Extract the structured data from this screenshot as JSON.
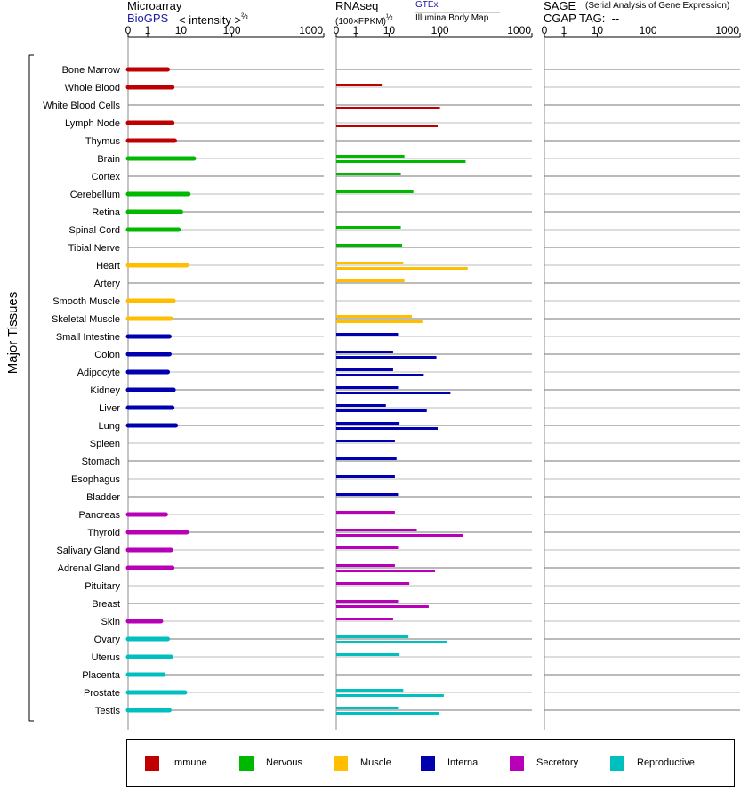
{
  "headers": {
    "microarray": "Microarray",
    "biogps": "BioGPS",
    "intensity": "< intensity >",
    "intensity_exp": "⅔",
    "rnaseq": "RNAseq",
    "fpkm": "(100×FPKM)",
    "fpkm_exp": "½",
    "gtex": "GTEx",
    "illumina": "Illumina Body Map",
    "sage": "SAGE",
    "sage_desc": "(Serial Analysis of Gene Expression)",
    "cgap": "CGAP TAG:",
    "cgap_value": "--"
  },
  "chart_data": {
    "type": "bar",
    "ylabel": "Major Tissues",
    "x_scale": "log-like (0, 1, 10, 100, 1000)",
    "x_ticks": [
      "0",
      "1",
      "10",
      "100",
      "1000"
    ],
    "x_range": [
      0,
      1000
    ],
    "colors": {
      "Immune": "#c00000",
      "Nervous": "#00b800",
      "Muscle": "#ffbf00",
      "Internal": "#0000b0",
      "Secretory": "#b800b8",
      "Reproductive": "#00bfbf"
    },
    "legend": [
      "Immune",
      "Nervous",
      "Muscle",
      "Internal",
      "Secretory",
      "Reproductive"
    ],
    "tissues": [
      {
        "name": "Bone Marrow",
        "group": "Immune",
        "microarray": 4,
        "gtex": null,
        "illumina": null
      },
      {
        "name": "Whole Blood",
        "group": "Immune",
        "microarray": 5.5,
        "gtex": 6,
        "illumina": null
      },
      {
        "name": "White Blood Cells",
        "group": "Immune",
        "microarray": null,
        "gtex": null,
        "illumina": 100
      },
      {
        "name": "Lymph Node",
        "group": "Immune",
        "microarray": 5.5,
        "gtex": null,
        "illumina": 90
      },
      {
        "name": "Thymus",
        "group": "Immune",
        "microarray": 6.5,
        "gtex": null,
        "illumina": null
      },
      {
        "name": "Brain",
        "group": "Nervous",
        "microarray": 18,
        "gtex": 20,
        "illumina": 190
      },
      {
        "name": "Cortex",
        "group": "Nervous",
        "microarray": null,
        "gtex": 17,
        "illumina": null
      },
      {
        "name": "Cerebellum",
        "group": "Nervous",
        "microarray": 14,
        "gtex": 30,
        "illumina": null
      },
      {
        "name": "Retina",
        "group": "Nervous",
        "microarray": 10,
        "gtex": null,
        "illumina": null
      },
      {
        "name": "Spinal Cord",
        "group": "Nervous",
        "microarray": 8.5,
        "gtex": 17,
        "illumina": null
      },
      {
        "name": "Tibial Nerve",
        "group": "Nervous",
        "microarray": null,
        "gtex": 18,
        "illumina": null
      },
      {
        "name": "Heart",
        "group": "Muscle",
        "microarray": 13,
        "gtex": 19,
        "illumina": 200
      },
      {
        "name": "Artery",
        "group": "Muscle",
        "microarray": null,
        "gtex": 20,
        "illumina": null
      },
      {
        "name": "Smooth Muscle",
        "group": "Muscle",
        "microarray": 6,
        "gtex": null,
        "illumina": null
      },
      {
        "name": "Skeletal Muscle",
        "group": "Muscle",
        "microarray": 5,
        "gtex": 28,
        "illumina": 45
      },
      {
        "name": "Small Intestine",
        "group": "Internal",
        "microarray": 4.5,
        "gtex": 15,
        "illumina": null
      },
      {
        "name": "Colon",
        "group": "Internal",
        "microarray": 4.5,
        "gtex": 12,
        "illumina": 85
      },
      {
        "name": "Adipocyte",
        "group": "Internal",
        "microarray": 4,
        "gtex": 12,
        "illumina": 48
      },
      {
        "name": "Kidney",
        "group": "Internal",
        "microarray": 6,
        "gtex": 15,
        "illumina": 130
      },
      {
        "name": "Liver",
        "group": "Internal",
        "microarray": 5.5,
        "gtex": 8,
        "illumina": 55
      },
      {
        "name": "Lung",
        "group": "Internal",
        "microarray": 7,
        "gtex": 16,
        "illumina": 90
      },
      {
        "name": "Spleen",
        "group": "Internal",
        "microarray": null,
        "gtex": 13,
        "illumina": null
      },
      {
        "name": "Stomach",
        "group": "Internal",
        "microarray": null,
        "gtex": 14,
        "illumina": null
      },
      {
        "name": "Esophagus",
        "group": "Internal",
        "microarray": null,
        "gtex": 13,
        "illumina": null
      },
      {
        "name": "Bladder",
        "group": "Internal",
        "microarray": null,
        "gtex": 15,
        "illumina": null
      },
      {
        "name": "Pancreas",
        "group": "Secretory",
        "microarray": 3.5,
        "gtex": 13,
        "illumina": null
      },
      {
        "name": "Thyroid",
        "group": "Secretory",
        "microarray": 13,
        "gtex": 35,
        "illumina": 180
      },
      {
        "name": "Salivary Gland",
        "group": "Secretory",
        "microarray": 5,
        "gtex": 15,
        "illumina": null
      },
      {
        "name": "Adrenal Gland",
        "group": "Secretory",
        "microarray": 5.5,
        "gtex": 13,
        "illumina": 80
      },
      {
        "name": "Pituitary",
        "group": "Secretory",
        "microarray": null,
        "gtex": 25,
        "illumina": null
      },
      {
        "name": "Breast",
        "group": "Secretory",
        "microarray": null,
        "gtex": 15,
        "illumina": 60
      },
      {
        "name": "Skin",
        "group": "Secretory",
        "microarray": 2.5,
        "gtex": 12,
        "illumina": null
      },
      {
        "name": "Ovary",
        "group": "Reproductive",
        "microarray": 4,
        "gtex": 24,
        "illumina": 120
      },
      {
        "name": "Uterus",
        "group": "Reproductive",
        "microarray": 5,
        "gtex": 16,
        "illumina": null
      },
      {
        "name": "Placenta",
        "group": "Reproductive",
        "microarray": 3,
        "gtex": null,
        "illumina": null
      },
      {
        "name": "Prostate",
        "group": "Reproductive",
        "microarray": 12,
        "gtex": 19,
        "illumina": 110
      },
      {
        "name": "Testis",
        "group": "Reproductive",
        "microarray": 4.5,
        "gtex": 15,
        "illumina": 95
      }
    ]
  }
}
